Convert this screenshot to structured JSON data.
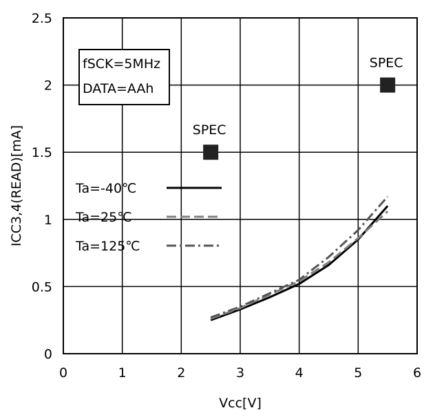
{
  "chart_data": {
    "type": "line",
    "xlabel": "Vcc[V]",
    "ylabel": "ICC3,4(READ)[mA]",
    "xlim": [
      0,
      6
    ],
    "ylim": [
      0,
      2.5
    ],
    "x_ticks": [
      "0",
      "1",
      "2",
      "3",
      "4",
      "5",
      "6"
    ],
    "y_ticks": [
      "0",
      "0.5",
      "1",
      "1.5",
      "2",
      "2.5"
    ],
    "grid": true,
    "conditions": [
      "fSCK=5MHz",
      "DATA=AAh"
    ],
    "series": [
      {
        "name": "Ta=-40℃",
        "style": "solid",
        "color": "#000000",
        "x": [
          2.5,
          3.0,
          3.5,
          4.0,
          4.5,
          5.0,
          5.5
        ],
        "y": [
          0.25,
          0.33,
          0.42,
          0.52,
          0.66,
          0.85,
          1.1
        ]
      },
      {
        "name": "Ta=25℃",
        "style": "dashed",
        "color": "#808080",
        "x": [
          2.5,
          3.0,
          3.5,
          4.0,
          4.5,
          5.0,
          5.5
        ],
        "y": [
          0.26,
          0.34,
          0.44,
          0.54,
          0.68,
          0.86,
          1.06
        ]
      },
      {
        "name": "Ta=125℃",
        "style": "dashdot",
        "color": "#555555",
        "x": [
          2.5,
          3.0,
          3.5,
          4.0,
          4.5,
          5.0,
          5.5
        ],
        "y": [
          0.27,
          0.35,
          0.45,
          0.55,
          0.72,
          0.92,
          1.17
        ]
      }
    ],
    "spec_points": [
      {
        "label": "SPEC",
        "x": 2.5,
        "y": 1.5
      },
      {
        "label": "SPEC",
        "x": 5.5,
        "y": 2.0
      }
    ]
  }
}
